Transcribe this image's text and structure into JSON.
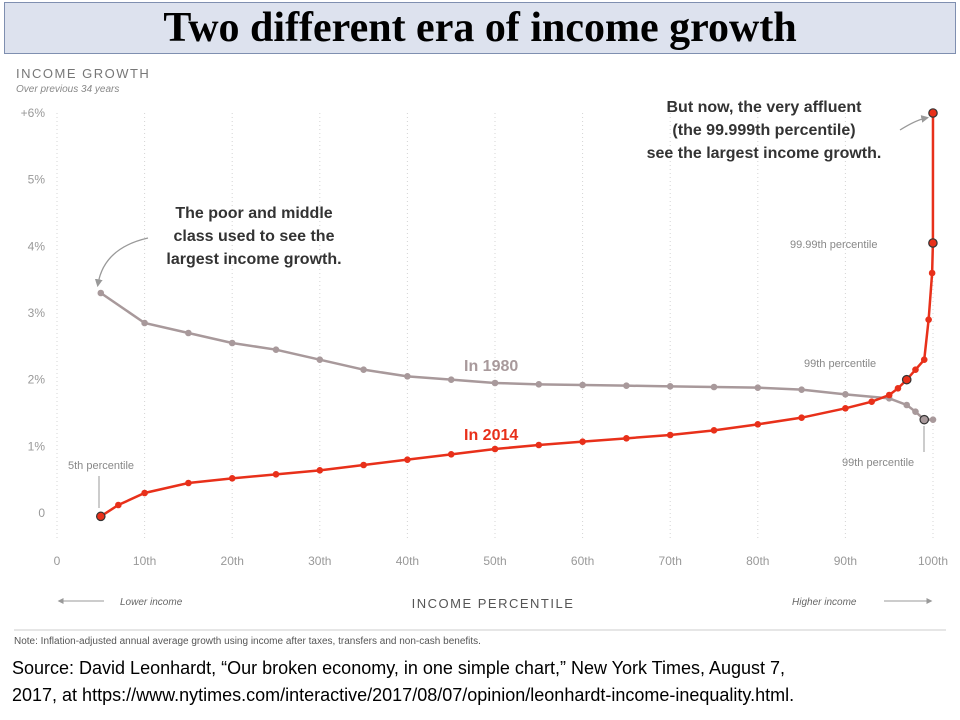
{
  "slide_title": "Two different era of income growth",
  "chart_title": "INCOME GROWTH",
  "chart_subtitle": "Over previous 34 years",
  "x_axis_label": "INCOME PERCENTILE",
  "lower_income_label": "Lower income",
  "higher_income_label": "Higher income",
  "note": "Note: Inflation-adjusted annual average growth using income after taxes, transfers and non-cash benefits.",
  "source_lines": [
    "Source: David Leonhardt, “Our broken economy, in one simple chart,” New York Times, August 7,",
    "2017, at https://www.nytimes.com/interactive/2017/08/07/opinion/leonhardt-income-inequality.html."
  ],
  "annotations": {
    "poor_middle": [
      "The poor and middle",
      "class used to see the",
      "largest income growth."
    ],
    "affluent": [
      "But now, the very affluent",
      "(the 99.999th percentile)",
      "see the largest income growth."
    ],
    "p5": "5th percentile",
    "p9999": "99.99th percentile",
    "p99_1980": "99th percentile",
    "p99_2014": "99th percentile"
  },
  "colors": {
    "series_1980": "#a8999b",
    "series_2014": "#e8301a",
    "title_box_bg": "#dde2ee",
    "axis_text": "#999999"
  },
  "chart_data": {
    "type": "scatter",
    "title": "INCOME GROWTH",
    "subtitle": "Over previous 34 years",
    "xlabel": "INCOME PERCENTILE",
    "ylabel": "",
    "xlim": [
      0,
      100
    ],
    "ylim": [
      0,
      6
    ],
    "x_ticks": [
      "0",
      "10th",
      "20th",
      "30th",
      "40th",
      "50th",
      "60th",
      "70th",
      "80th",
      "90th",
      "100th"
    ],
    "y_ticks": [
      "0",
      "1%",
      "2%",
      "3%",
      "4%",
      "5%",
      "+6%"
    ],
    "grid": "vertical dotted",
    "series": [
      {
        "name": "In 1980",
        "x": [
          5,
          10,
          15,
          20,
          25,
          30,
          35,
          40,
          45,
          50,
          55,
          60,
          65,
          70,
          75,
          80,
          85,
          90,
          95,
          97,
          98,
          99,
          100
        ],
        "y": [
          3.3,
          2.85,
          2.7,
          2.55,
          2.45,
          2.3,
          2.15,
          2.05,
          2.0,
          1.95,
          1.93,
          1.92,
          1.91,
          1.9,
          1.89,
          1.88,
          1.85,
          1.78,
          1.72,
          1.62,
          1.52,
          1.4,
          1.4
        ]
      },
      {
        "name": "In 2014",
        "x": [
          5,
          7,
          10,
          15,
          20,
          25,
          30,
          35,
          40,
          45,
          50,
          55,
          60,
          65,
          70,
          75,
          80,
          85,
          90,
          93,
          95,
          96,
          97,
          98,
          99,
          99.5,
          99.9,
          99.99,
          99.999
        ],
        "y": [
          -0.05,
          0.12,
          0.3,
          0.45,
          0.52,
          0.58,
          0.64,
          0.72,
          0.8,
          0.88,
          0.96,
          1.02,
          1.07,
          1.12,
          1.17,
          1.24,
          1.33,
          1.43,
          1.57,
          1.67,
          1.77,
          1.87,
          2.0,
          2.15,
          2.3,
          2.9,
          3.6,
          4.05,
          6.0
        ]
      }
    ]
  }
}
